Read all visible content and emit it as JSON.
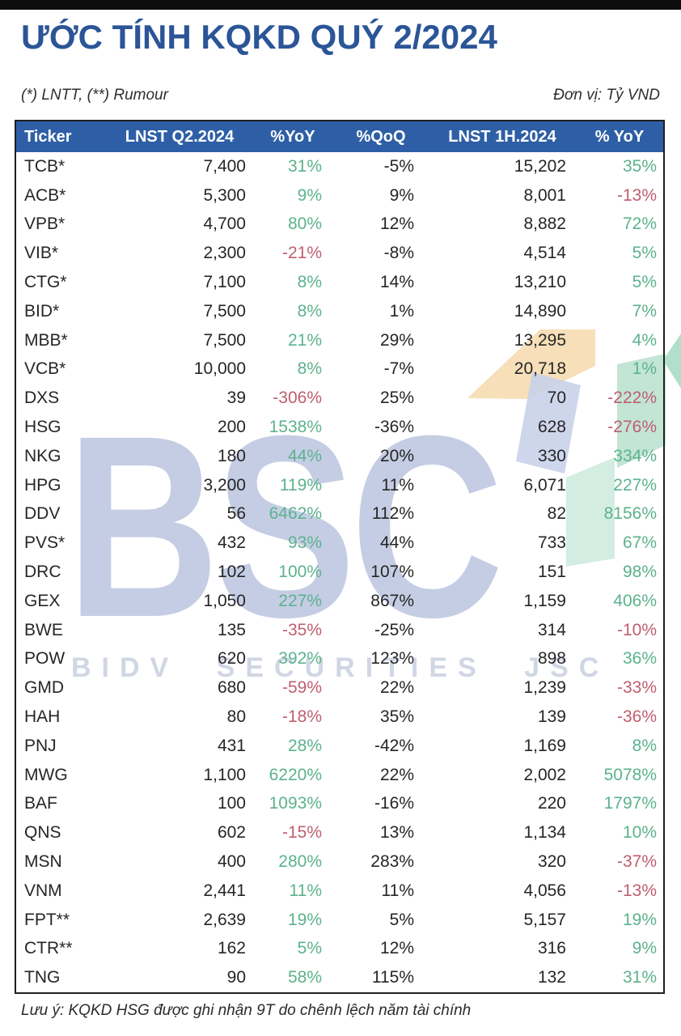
{
  "page": {
    "title": "ƯỚC TÍNH KQKD QUÝ 2/2024",
    "note_left": "(*) LNTT, (**) Rumour",
    "unit_right": "Đơn vị: Tỷ VND",
    "footnote": "Lưu ý: KQKD HSG được ghi nhận 9T do chênh lệch năm tài chính"
  },
  "watermark": {
    "logo_text": "BSC",
    "company_text": "BIDV SECURITIES JSC"
  },
  "colors": {
    "positive": "#5cb28e",
    "negative": "#bf5e70",
    "header_bg": "#2e5fa6",
    "title_blue": "#2b5597"
  },
  "table": {
    "headers": [
      "Ticker",
      "LNST Q2.2024",
      "%YoY",
      "%QoQ",
      "LNST 1H.2024",
      "% YoY"
    ],
    "rows": [
      [
        "TCB*",
        "7,400",
        "31%",
        "-5%",
        "15,202",
        "35%"
      ],
      [
        "ACB*",
        "5,300",
        "9%",
        "9%",
        "8,001",
        "-13%"
      ],
      [
        "VPB*",
        "4,700",
        "80%",
        "12%",
        "8,882",
        "72%"
      ],
      [
        "VIB*",
        "2,300",
        "-21%",
        "-8%",
        "4,514",
        "5%"
      ],
      [
        "CTG*",
        "7,100",
        "8%",
        "14%",
        "13,210",
        "5%"
      ],
      [
        "BID*",
        "7,500",
        "8%",
        "1%",
        "14,890",
        "7%"
      ],
      [
        "MBB*",
        "7,500",
        "21%",
        "29%",
        "13,295",
        "4%"
      ],
      [
        "VCB*",
        "10,000",
        "8%",
        "-7%",
        "20,718",
        "1%"
      ],
      [
        "DXS",
        "39",
        "-306%",
        "25%",
        "70",
        "-222%"
      ],
      [
        "HSG",
        "200",
        "1538%",
        "-36%",
        "628",
        "-276%"
      ],
      [
        "NKG",
        "180",
        "44%",
        "20%",
        "330",
        "334%"
      ],
      [
        "HPG",
        "3,200",
        "119%",
        "11%",
        "6,071",
        "227%"
      ],
      [
        "DDV",
        "56",
        "6462%",
        "112%",
        "82",
        "8156%"
      ],
      [
        "PVS*",
        "432",
        "93%",
        "44%",
        "733",
        "67%"
      ],
      [
        "DRC",
        "102",
        "100%",
        "107%",
        "151",
        "98%"
      ],
      [
        "GEX",
        "1,050",
        "227%",
        "867%",
        "1,159",
        "406%"
      ],
      [
        "BWE",
        "135",
        "-35%",
        "-25%",
        "314",
        "-10%"
      ],
      [
        "POW",
        "620",
        "392%",
        "123%",
        "898",
        "36%"
      ],
      [
        "GMD",
        "680",
        "-59%",
        "22%",
        "1,239",
        "-33%"
      ],
      [
        "HAH",
        "80",
        "-18%",
        "35%",
        "139",
        "-36%"
      ],
      [
        "PNJ",
        "431",
        "28%",
        "-42%",
        "1,169",
        "8%"
      ],
      [
        "MWG",
        "1,100",
        "6220%",
        "22%",
        "2,002",
        "5078%"
      ],
      [
        "BAF",
        "100",
        "1093%",
        "-16%",
        "220",
        "1797%"
      ],
      [
        "QNS",
        "602",
        "-15%",
        "13%",
        "1,134",
        "10%"
      ],
      [
        "MSN",
        "400",
        "280%",
        "283%",
        "320",
        "-37%"
      ],
      [
        "VNM",
        "2,441",
        "11%",
        "11%",
        "4,056",
        "-13%"
      ],
      [
        "FPT**",
        "2,639",
        "19%",
        "5%",
        "5,157",
        "19%"
      ],
      [
        "CTR**",
        "162",
        "5%",
        "12%",
        "316",
        "9%"
      ],
      [
        "TNG",
        "90",
        "58%",
        "115%",
        "132",
        "31%"
      ]
    ]
  }
}
